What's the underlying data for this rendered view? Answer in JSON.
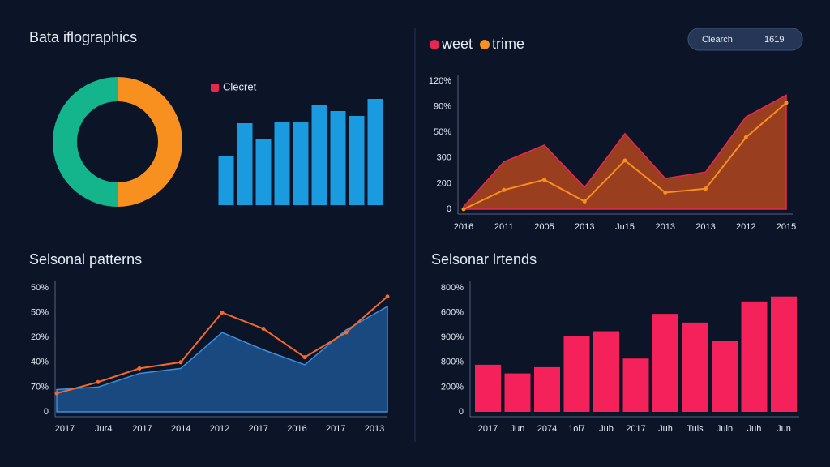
{
  "search": {
    "placeholder": "Clearch",
    "value": "1619"
  },
  "chart_data": [
    {
      "type": "pie",
      "title": "Bata iflographics",
      "values": [
        50,
        50
      ],
      "colors": [
        "#f7901e",
        "#14b48c"
      ],
      "donut": true
    },
    {
      "type": "bar",
      "series": [
        {
          "name": "Clecret",
          "color": "#e8264f",
          "values": [
            60,
            101,
            81,
            102,
            102,
            123,
            116,
            110,
            131
          ]
        }
      ],
      "bar_color": "#1a9be0",
      "ylim": [
        0,
        140
      ]
    },
    {
      "type": "line",
      "categories": [
        "2016",
        "2011",
        "2005",
        "2013",
        "Ju15",
        "2013",
        "2013",
        "2012",
        "2015"
      ],
      "series": [
        {
          "name": "weet",
          "color": "#e8264f",
          "fill": "#a8431e",
          "area": true,
          "values": [
            2,
            37,
            50,
            17,
            59,
            24,
            29,
            72,
            89
          ]
        },
        {
          "name": "trime",
          "color": "#f7901e",
          "values": [
            0,
            15,
            23,
            6,
            38,
            13,
            16,
            56,
            83
          ]
        }
      ],
      "ylim": [
        0,
        100
      ],
      "yticks": [
        {
          "value": 100,
          "label": "120%"
        },
        {
          "value": 80,
          "label": "90%"
        },
        {
          "value": 60,
          "label": "50%"
        },
        {
          "value": 40,
          "label": "300"
        },
        {
          "value": 20,
          "label": "200"
        },
        0
      ]
    },
    {
      "type": "line",
      "title": "Selsonal patterns",
      "categories": [
        "2017",
        "Jur4",
        "2017",
        "2014",
        "2012",
        "2017",
        "2016",
        "2017",
        "2013"
      ],
      "series": [
        {
          "color": "#3b8ee0",
          "fill": "#1c4f8a",
          "area": true,
          "values": [
            18,
            20,
            31,
            35,
            64,
            50,
            38,
            66,
            85
          ]
        },
        {
          "color": "#f26a2e",
          "values": [
            15,
            24,
            35,
            40,
            80,
            67,
            44,
            64,
            93
          ]
        }
      ],
      "ylim": [
        0,
        100
      ],
      "yticks": [
        {
          "value": 100,
          "label": "50%"
        },
        {
          "value": 80,
          "label": "50%"
        },
        {
          "value": 60,
          "label": "20%"
        },
        {
          "value": 40,
          "label": "40%"
        },
        {
          "value": 20,
          "label": "70%"
        },
        0
      ]
    },
    {
      "type": "bar",
      "title": "Selsonar lrtends",
      "categories": [
        "2017",
        "Jun",
        "2074",
        "1ol7",
        "Jub",
        "2017",
        "Juh",
        "Tuls",
        "Juin",
        "Juh",
        "Jun"
      ],
      "values": [
        38,
        31,
        36,
        61,
        65,
        43,
        79,
        72,
        57,
        89,
        93
      ],
      "color": "#f5215a",
      "ylim": [
        0,
        100
      ],
      "yticks": [
        {
          "value": 100,
          "label": "800%"
        },
        {
          "value": 80,
          "label": "600%"
        },
        {
          "value": 60,
          "label": "900%"
        },
        {
          "value": 40,
          "label": "800%"
        },
        {
          "value": 20,
          "label": "200%"
        },
        0
      ]
    }
  ]
}
